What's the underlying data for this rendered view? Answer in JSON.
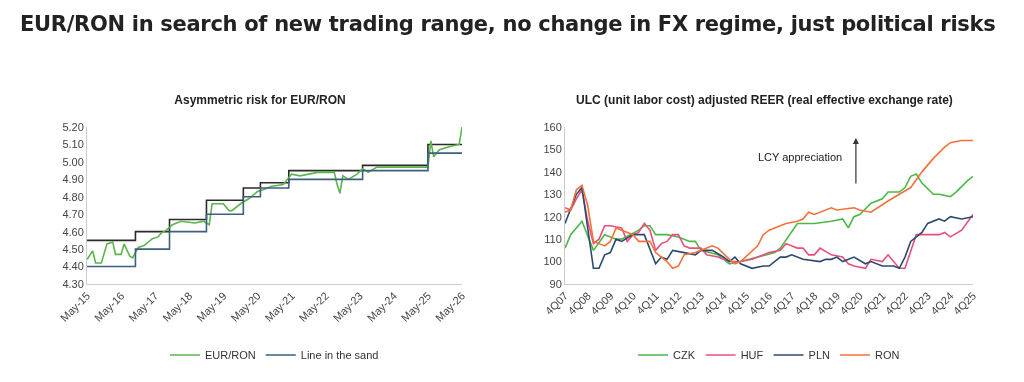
{
  "chart_data": [
    {
      "type": "other",
      "title": "EUR/RON in search of new trading range, no change in FX regime, just political risks"
    },
    {
      "type": "line",
      "title": "Asymmetric risk for EUR/RON",
      "legend": "bottom",
      "marker": "none",
      "line_style": "solid",
      "xlim": [
        "2015-05",
        "2026-05"
      ],
      "xticks": [
        {
          "value": "2015-05",
          "label": "May-15"
        },
        {
          "value": "2016-05",
          "label": "May-16"
        },
        {
          "value": "2017-05",
          "label": "May-17"
        },
        {
          "value": "2018-05",
          "label": "May-18"
        },
        {
          "value": "2019-05",
          "label": "May-19"
        },
        {
          "value": "2020-05",
          "label": "May-20"
        },
        {
          "value": "2021-05",
          "label": "May-21"
        },
        {
          "value": "2022-05",
          "label": "May-22"
        },
        {
          "value": "2023-05",
          "label": "May-23"
        },
        {
          "value": "2024-05",
          "label": "May-24"
        },
        {
          "value": "2025-05",
          "label": "May-25"
        },
        {
          "value": "2026-05",
          "label": "May-26"
        }
      ],
      "ylim": [
        4.3,
        5.2
      ],
      "yticks": [
        {
          "value": 4.3,
          "label": "4.30"
        },
        {
          "value": 4.4,
          "label": "4.40"
        },
        {
          "value": 4.5,
          "label": "4.50"
        },
        {
          "value": 4.6,
          "label": "4.60"
        },
        {
          "value": 4.7,
          "label": "4.70"
        },
        {
          "value": 4.8,
          "label": "4.80"
        },
        {
          "value": 4.9,
          "label": "4.90"
        },
        {
          "value": 5.0,
          "label": "5.00"
        },
        {
          "value": 5.1,
          "label": "5.10"
        },
        {
          "value": 5.2,
          "label": "5.20"
        }
      ],
      "series": [
        {
          "type": "step",
          "color": "#2b2b2b",
          "x": [
            "2015-05",
            "2016-10",
            "2017-10",
            "2018-11",
            "2019-12",
            "2020-06",
            "2021-04",
            "2023-06",
            "2025-05",
            "2026-05"
          ],
          "values": [
            4.55,
            4.6,
            4.67,
            4.78,
            4.85,
            4.88,
            4.95,
            4.98,
            5.1,
            5.1
          ]
        },
        {
          "name": "EUR/RON",
          "color": "#5ab54a",
          "x": [
            "2015-05",
            "2015-07",
            "2015-08",
            "2015-10",
            "2015-12",
            "2016-02",
            "2016-03",
            "2016-05",
            "2016-06",
            "2016-08",
            "2016-09",
            "2016-11",
            "2017-01",
            "2017-04",
            "2017-06",
            "2017-07",
            "2017-09",
            "2017-11",
            "2018-02",
            "2018-07",
            "2018-10",
            "2018-12",
            "2019-01",
            "2019-05",
            "2019-07",
            "2019-08",
            "2019-11",
            "2019-12",
            "2020-02",
            "2020-05",
            "2020-07",
            "2020-10",
            "2021-02",
            "2021-05",
            "2021-08",
            "2022-02",
            "2022-08",
            "2022-09",
            "2022-10",
            "2022-11",
            "2023-01",
            "2023-04",
            "2023-06",
            "2023-08",
            "2023-11",
            "2024-07",
            "2025-05",
            "2025-06",
            "2025-07",
            "2025-09",
            "2026-01",
            "2026-04",
            "2026-05"
          ],
          "values": [
            4.44,
            4.49,
            4.42,
            4.42,
            4.53,
            4.54,
            4.47,
            4.47,
            4.53,
            4.46,
            4.45,
            4.51,
            4.52,
            4.56,
            4.57,
            4.59,
            4.61,
            4.64,
            4.66,
            4.65,
            4.66,
            4.64,
            4.76,
            4.76,
            4.72,
            4.72,
            4.76,
            4.77,
            4.79,
            4.83,
            4.84,
            4.86,
            4.87,
            4.93,
            4.92,
            4.94,
            4.94,
            4.87,
            4.82,
            4.92,
            4.9,
            4.93,
            4.96,
            4.94,
            4.97,
            4.97,
            4.97,
            5.12,
            5.03,
            5.07,
            5.09,
            5.1,
            5.2
          ]
        },
        {
          "name": "Line in the sand",
          "type": "step",
          "color": "#3d5f80",
          "x": [
            "2015-05",
            "2016-10",
            "2017-10",
            "2018-11",
            "2019-12",
            "2020-06",
            "2021-04",
            "2023-06",
            "2025-05",
            "2026-05"
          ],
          "values": [
            4.4,
            4.5,
            4.6,
            4.7,
            4.8,
            4.85,
            4.9,
            4.95,
            5.05,
            5.05
          ]
        }
      ]
    },
    {
      "type": "line",
      "title": "ULC (unit labor cost) adjusted REER (real effective exchange rate)",
      "legend": "bottom",
      "marker": "none",
      "line_style": "solid",
      "annotations": [
        "LCY appreciation"
      ],
      "xlim": [
        "2007-10",
        "2025-10"
      ],
      "xticks": [
        {
          "value": "2007-10",
          "label": "4Q07"
        },
        {
          "value": "2008-10",
          "label": "4Q08"
        },
        {
          "value": "2009-10",
          "label": "4Q09"
        },
        {
          "value": "2010-10",
          "label": "4Q10"
        },
        {
          "value": "2011-10",
          "label": "4Q11"
        },
        {
          "value": "2012-10",
          "label": "4Q12"
        },
        {
          "value": "2013-10",
          "label": "4Q13"
        },
        {
          "value": "2014-10",
          "label": "4Q14"
        },
        {
          "value": "2015-10",
          "label": "4Q15"
        },
        {
          "value": "2016-10",
          "label": "4Q16"
        },
        {
          "value": "2017-10",
          "label": "4Q17"
        },
        {
          "value": "2018-10",
          "label": "4Q18"
        },
        {
          "value": "2019-10",
          "label": "4Q19"
        },
        {
          "value": "2020-10",
          "label": "4Q20"
        },
        {
          "value": "2021-10",
          "label": "4Q21"
        },
        {
          "value": "2022-10",
          "label": "4Q22"
        },
        {
          "value": "2023-10",
          "label": "4Q23"
        },
        {
          "value": "2024-10",
          "label": "4Q24"
        },
        {
          "value": "2025-10",
          "label": "4Q25"
        }
      ],
      "ylim": [
        90,
        160
      ],
      "yticks": [
        90,
        100,
        110,
        120,
        130,
        140,
        150,
        160
      ],
      "series": [
        {
          "name": "CZK",
          "color": "#4cb848",
          "x": [
            "2007-10",
            "2008-01",
            "2008-07",
            "2009-01",
            "2009-07",
            "2010-01",
            "2010-04",
            "2011-01",
            "2011-04",
            "2011-07",
            "2011-10",
            "2012-04",
            "2012-10",
            "2013-04",
            "2013-07",
            "2013-10",
            "2014-07",
            "2015-01",
            "2015-07",
            "2016-04",
            "2017-01",
            "2017-04",
            "2018-01",
            "2018-07",
            "2018-10",
            "2019-07",
            "2020-01",
            "2020-04",
            "2020-07",
            "2020-10",
            "2021-04",
            "2021-10",
            "2022-01",
            "2022-07",
            "2022-10",
            "2023-01",
            "2023-04",
            "2023-07",
            "2024-01",
            "2024-04",
            "2024-10",
            "2025-01",
            "2025-07",
            "2025-10"
          ],
          "values": [
            106,
            112,
            118,
            105,
            112,
            110,
            110,
            114,
            116,
            116,
            112,
            112,
            111,
            109,
            109,
            105,
            103,
            99,
            100,
            102,
            104,
            106,
            117,
            117,
            117,
            118,
            119,
            115,
            120,
            121,
            126,
            128,
            131,
            131,
            133,
            138,
            139,
            135,
            130,
            130,
            129,
            131,
            136,
            138
          ]
        },
        {
          "name": "HUF",
          "color": "#e8507a",
          "x": [
            "2007-10",
            "2008-01",
            "2008-04",
            "2008-07",
            "2008-10",
            "2009-01",
            "2009-04",
            "2009-07",
            "2009-10",
            "2010-04",
            "2010-07",
            "2010-10",
            "2011-01",
            "2011-04",
            "2011-07",
            "2011-10",
            "2012-01",
            "2012-04",
            "2012-07",
            "2012-10",
            "2013-01",
            "2013-04",
            "2013-10",
            "2014-01",
            "2014-07",
            "2014-10",
            "2015-01",
            "2015-07",
            "2016-01",
            "2016-10",
            "2017-04",
            "2017-07",
            "2018-01",
            "2018-04",
            "2018-07",
            "2018-10",
            "2019-01",
            "2019-07",
            "2020-01",
            "2020-04",
            "2020-07",
            "2021-01",
            "2021-04",
            "2021-10",
            "2022-01",
            "2022-07",
            "2022-10",
            "2023-04",
            "2023-10",
            "2024-04",
            "2024-07",
            "2024-10",
            "2025-04",
            "2025-10"
          ],
          "values": [
            124,
            123,
            128,
            132,
            118,
            108,
            110,
            116,
            116,
            115,
            109,
            112,
            113,
            117,
            114,
            105,
            108,
            109,
            112,
            112,
            107,
            106,
            106,
            103,
            102,
            101,
            100,
            100,
            101,
            104,
            105,
            108,
            106,
            106,
            103,
            103,
            106,
            103,
            102,
            99,
            98,
            97,
            101,
            100,
            103,
            97,
            97,
            112,
            112,
            112,
            113,
            111,
            114,
            121
          ]
        },
        {
          "name": "PLN",
          "color": "#2c4a6e",
          "x": [
            "2007-10",
            "2008-04",
            "2008-07",
            "2009-01",
            "2009-04",
            "2009-07",
            "2009-10",
            "2010-01",
            "2010-04",
            "2010-10",
            "2011-04",
            "2011-10",
            "2012-01",
            "2012-04",
            "2012-07",
            "2013-01",
            "2013-07",
            "2013-10",
            "2014-04",
            "2014-10",
            "2015-01",
            "2015-04",
            "2015-07",
            "2016-01",
            "2016-07",
            "2016-10",
            "2017-04",
            "2017-07",
            "2017-10",
            "2018-04",
            "2019-01",
            "2019-04",
            "2019-07",
            "2019-10",
            "2020-01",
            "2020-07",
            "2021-01",
            "2021-04",
            "2021-10",
            "2022-04",
            "2022-07",
            "2022-10",
            "2023-01",
            "2023-07",
            "2023-10",
            "2024-04",
            "2024-07",
            "2024-10",
            "2025-04",
            "2025-10"
          ],
          "values": [
            117,
            130,
            133,
            97,
            97,
            103,
            104,
            110,
            109,
            112,
            112,
            99,
            102,
            101,
            105,
            104,
            103,
            105,
            105,
            102,
            100,
            102,
            99,
            97,
            98,
            98,
            102,
            102,
            103,
            101,
            100,
            101,
            101,
            102,
            100,
            102,
            99,
            100,
            98,
            98,
            97,
            102,
            109,
            113,
            117,
            119,
            118,
            120,
            119,
            120
          ]
        },
        {
          "name": "RON",
          "color": "#f5703a",
          "x": [
            "2007-10",
            "2008-01",
            "2008-04",
            "2008-07",
            "2008-10",
            "2009-01",
            "2009-04",
            "2009-07",
            "2009-10",
            "2010-01",
            "2010-04",
            "2010-10",
            "2011-01",
            "2011-07",
            "2011-10",
            "2012-01",
            "2012-04",
            "2012-07",
            "2012-10",
            "2013-01",
            "2013-07",
            "2014-01",
            "2014-04",
            "2014-07",
            "2015-01",
            "2015-04",
            "2015-07",
            "2016-04",
            "2016-07",
            "2016-10",
            "2017-07",
            "2018-01",
            "2018-04",
            "2018-07",
            "2018-10",
            "2019-07",
            "2019-10",
            "2020-07",
            "2020-10",
            "2021-04",
            "2022-01",
            "2022-07",
            "2023-01",
            "2023-07",
            "2024-01",
            "2024-07",
            "2024-10",
            "2025-04",
            "2025-10"
          ],
          "values": [
            122,
            123,
            132,
            134,
            125,
            109,
            108,
            107,
            109,
            115,
            114,
            112,
            109,
            109,
            104,
            102,
            100,
            97,
            98,
            103,
            104,
            106,
            107,
            106,
            101,
            99,
            100,
            107,
            112,
            114,
            117,
            118,
            119,
            122,
            121,
            124,
            123,
            124,
            123,
            122,
            127,
            130,
            133,
            140,
            146,
            151,
            153,
            154,
            154
          ]
        }
      ]
    }
  ]
}
